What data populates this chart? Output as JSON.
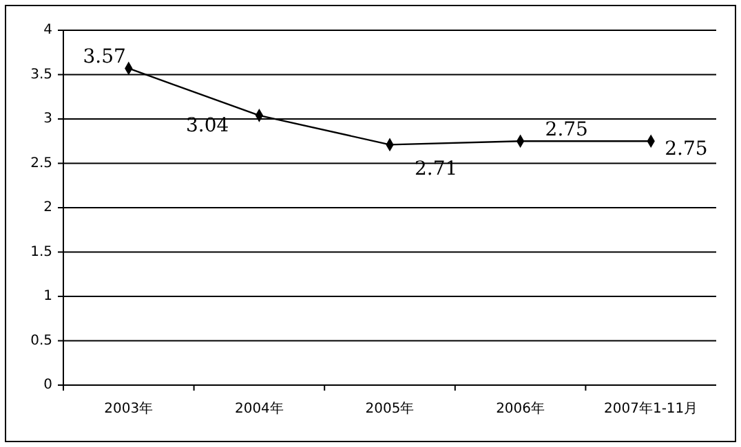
{
  "chart_data": {
    "type": "line",
    "categories": [
      "2003年",
      "2004年",
      "2005年",
      "2006年",
      "2007年1-11月"
    ],
    "series": [
      {
        "color": "#000000",
        "values": [
          3.57,
          3.04,
          2.71,
          2.75,
          2.75
        ]
      }
    ],
    "ylim": [
      0,
      4
    ],
    "yticks": [
      0,
      0.5,
      1,
      1.5,
      2,
      2.5,
      3,
      3.5,
      4
    ],
    "grid": "y",
    "marker": "diamond",
    "data_labels": true
  }
}
